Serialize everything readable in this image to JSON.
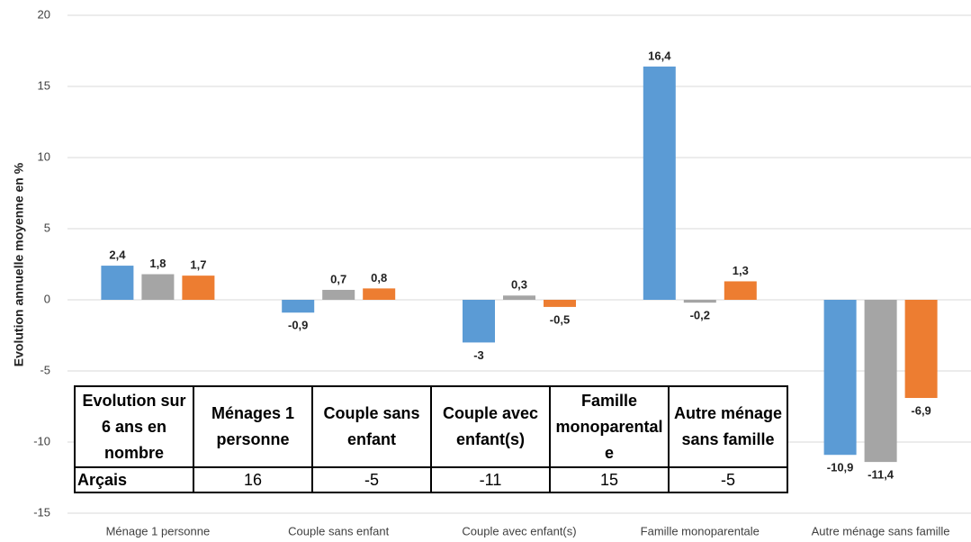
{
  "chart_data": {
    "type": "bar",
    "y_label": "Evolution annuelle moyenne en %",
    "categories": [
      "Ménage 1 personne",
      "Couple sans enfant",
      "Couple avec enfant(s)",
      "Famille monoparentale",
      "Autre ménage sans famille"
    ],
    "series": [
      {
        "color": "#5b9bd5",
        "values": [
          2.4,
          -0.9,
          -3,
          16.4,
          -10.9
        ],
        "value_labels": [
          "2,4",
          "-0,9",
          "-3",
          "16,4",
          "-10,9"
        ]
      },
      {
        "color": "#a5a5a5",
        "values": [
          1.8,
          0.7,
          0.3,
          -0.2,
          -11.4
        ],
        "value_labels": [
          "1,8",
          "0,7",
          "0,3",
          "-0,2",
          "-11,4"
        ]
      },
      {
        "color": "#ed7d31",
        "values": [
          1.7,
          0.8,
          -0.5,
          1.3,
          -6.9
        ],
        "value_labels": [
          "1,7",
          "0,8",
          "-0,5",
          "1,3",
          "-6,9"
        ]
      }
    ],
    "ylim": [
      -15,
      20
    ],
    "yticks": [
      -15,
      -10,
      -5,
      0,
      5,
      10,
      15,
      20
    ],
    "grid": true
  },
  "table": {
    "header": [
      "Evolution sur 6 ans en nombre",
      "Ménages 1 personne",
      "Couple sans enfant",
      "Couple avec enfant(s)",
      "Famille monoparentale",
      "Autre ménage sans famille"
    ],
    "rows": [
      [
        "Arçais",
        "16",
        "-5",
        "-11",
        "15",
        "-5"
      ]
    ]
  }
}
